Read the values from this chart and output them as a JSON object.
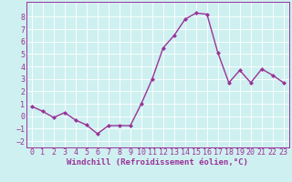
{
  "x": [
    0,
    1,
    2,
    3,
    4,
    5,
    6,
    7,
    8,
    9,
    10,
    11,
    12,
    13,
    14,
    15,
    16,
    17,
    18,
    19,
    20,
    21,
    22,
    23
  ],
  "y": [
    0.8,
    0.4,
    -0.1,
    0.3,
    -0.3,
    -0.7,
    -1.4,
    -0.75,
    -0.75,
    -0.75,
    1.0,
    3.0,
    5.5,
    6.5,
    7.8,
    8.3,
    8.2,
    5.1,
    2.7,
    3.7,
    2.7,
    3.8,
    3.3,
    2.7
  ],
  "line_color": "#993399",
  "marker": "D",
  "marker_size": 2.0,
  "bg_color": "#cff0f0",
  "grid_color": "#ffffff",
  "xlabel": "Windchill (Refroidissement éolien,°C)",
  "ylabel": "",
  "xlim": [
    -0.5,
    23.5
  ],
  "ylim": [
    -2.5,
    9.2
  ],
  "yticks": [
    -2,
    -1,
    0,
    1,
    2,
    3,
    4,
    5,
    6,
    7,
    8
  ],
  "xticks": [
    0,
    1,
    2,
    3,
    4,
    5,
    6,
    7,
    8,
    9,
    10,
    11,
    12,
    13,
    14,
    15,
    16,
    17,
    18,
    19,
    20,
    21,
    22,
    23
  ],
  "tick_color": "#993399",
  "label_color": "#993399",
  "font_size": 6.0,
  "xlabel_font_size": 6.5,
  "line_width": 1.0
}
